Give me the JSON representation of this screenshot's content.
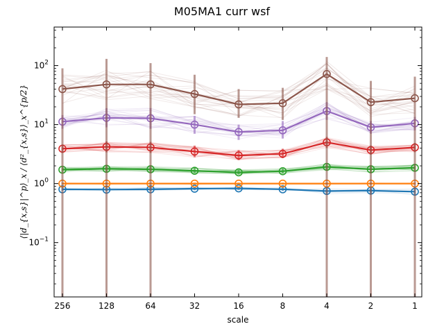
{
  "chart_data": {
    "type": "line",
    "title": "M05MA1 curr wsf",
    "xlabel": "scale",
    "ylabel": "⟨|d_{x,s}|^p⟩_x / ⟨d²_{x,s}⟩_x^{p/2}",
    "x_scale": "log2-reversed",
    "y_scale": "log",
    "categories": [
      "256",
      "128",
      "64",
      "32",
      "16",
      "8",
      "4",
      "2",
      "1"
    ],
    "ylim": [
      0.012,
      450
    ],
    "y_ticks": [
      {
        "base": "10",
        "exp": "−1",
        "value": 0.1
      },
      {
        "base": "10",
        "exp": "0",
        "value": 1
      },
      {
        "base": "10",
        "exp": "1",
        "value": 10
      },
      {
        "base": "10",
        "exp": "2",
        "value": 100
      }
    ],
    "grid": false,
    "series": [
      {
        "color": "#1f77b4",
        "values": [
          0.8,
          0.79,
          0.8,
          0.82,
          0.83,
          0.8,
          0.75,
          0.76,
          0.73
        ],
        "err_low": [
          0.75,
          0.74,
          0.74,
          0.77,
          0.78,
          0.75,
          0.66,
          0.67,
          0.63
        ],
        "err_high": [
          0.86,
          0.85,
          0.86,
          0.87,
          0.88,
          0.86,
          0.84,
          0.85,
          0.83
        ]
      },
      {
        "color": "#ff7f0e",
        "values": [
          1.0,
          1.0,
          1.0,
          1.0,
          1.0,
          1.0,
          1.0,
          1.0,
          1.0
        ],
        "err_low": [
          0.96,
          0.96,
          0.96,
          0.96,
          0.96,
          0.96,
          0.96,
          0.96,
          0.96
        ],
        "err_high": [
          1.04,
          1.04,
          1.04,
          1.04,
          1.04,
          1.04,
          1.04,
          1.04,
          1.04
        ]
      },
      {
        "color": "#2ca02c",
        "values": [
          1.72,
          1.78,
          1.75,
          1.65,
          1.55,
          1.62,
          1.92,
          1.75,
          1.85
        ],
        "err_low": [
          1.55,
          1.58,
          1.56,
          1.5,
          1.42,
          1.48,
          1.7,
          1.55,
          1.65
        ],
        "err_high": [
          1.92,
          2.0,
          1.98,
          1.85,
          1.72,
          1.8,
          2.18,
          2.0,
          2.08
        ]
      },
      {
        "color": "#d62728",
        "values": [
          3.9,
          4.2,
          4.1,
          3.5,
          3.0,
          3.2,
          5.0,
          3.7,
          4.1
        ],
        "err_low": [
          3.3,
          3.4,
          3.3,
          2.8,
          2.5,
          2.7,
          4.0,
          3.1,
          3.4
        ],
        "err_high": [
          4.6,
          5.2,
          5.1,
          4.4,
          3.7,
          3.9,
          6.2,
          4.4,
          4.9
        ]
      },
      {
        "color": "#9467bd",
        "values": [
          11.2,
          13.0,
          12.8,
          10.0,
          7.5,
          8.0,
          17.0,
          9.0,
          10.5
        ],
        "err_low": [
          8.5,
          9.0,
          8.5,
          7.0,
          5.5,
          5.8,
          12.0,
          7.0,
          8.0
        ],
        "err_high": [
          14.5,
          19.0,
          19.0,
          14.0,
          10.0,
          11.5,
          24.0,
          11.5,
          13.5
        ]
      },
      {
        "color": "#8c564b",
        "values": [
          40,
          48,
          48,
          33,
          22,
          23,
          72,
          24,
          28
        ],
        "err_low": [
          0.012,
          0.012,
          0.012,
          15,
          13,
          12,
          0.012,
          0.012,
          0.012
        ],
        "err_high": [
          90,
          130,
          110,
          70,
          40,
          42,
          140,
          55,
          65
        ]
      }
    ]
  }
}
